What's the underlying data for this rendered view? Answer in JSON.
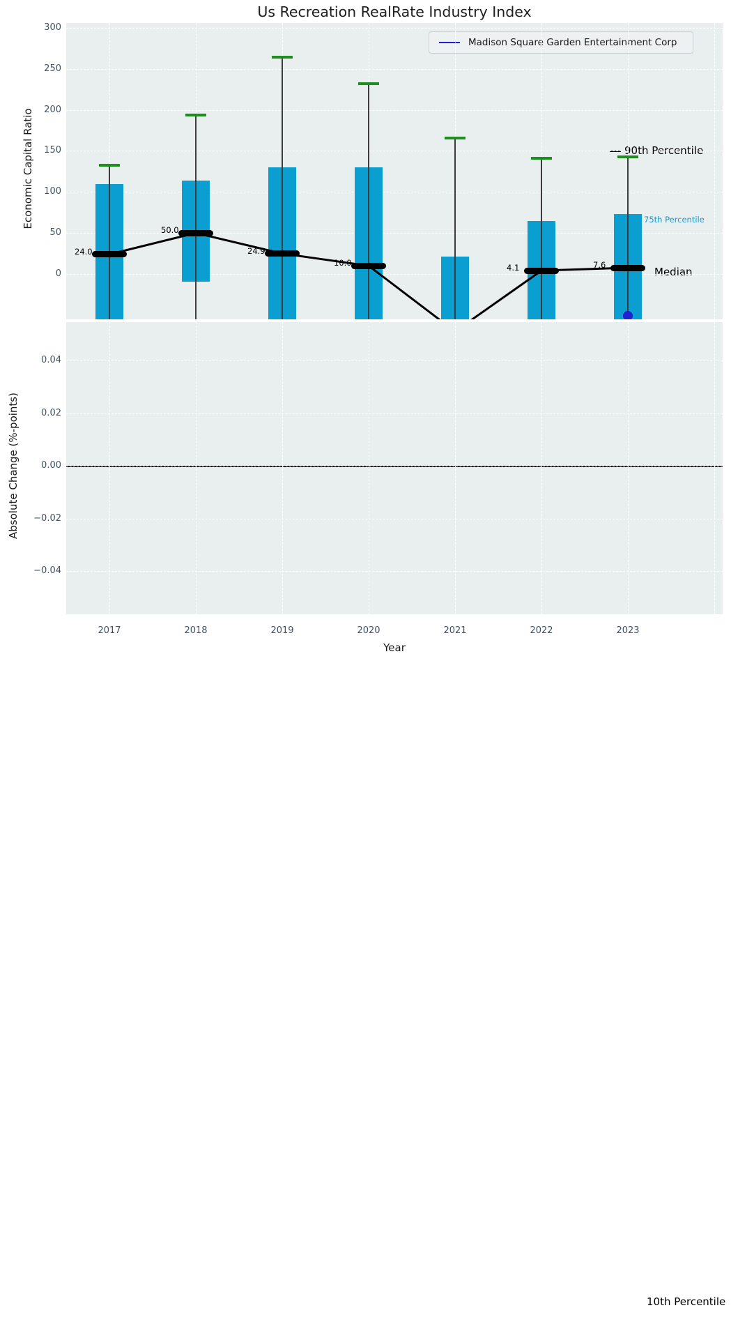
{
  "figure": {
    "title": "Us Recreation RealRate Industry Index"
  },
  "chart_data": {
    "type": "bar",
    "subtype": "percentile-band-timeseries",
    "title": "Us Recreation RealRate Industry Index",
    "xlabel": "Year",
    "categories": [
      "2017",
      "2018",
      "2019",
      "2020",
      "2021",
      "2022",
      "2023"
    ],
    "top_panel": {
      "ylabel": "Economic Capital Ratio",
      "ylim": [
        -55,
        306
      ],
      "yticks": [
        {
          "label": "300",
          "value": 300
        },
        {
          "label": "250",
          "value": 250
        },
        {
          "label": "200",
          "value": 200
        },
        {
          "label": "150",
          "value": 150
        },
        {
          "label": "100",
          "value": 100
        },
        {
          "label": "50",
          "value": 50
        },
        {
          "label": "0",
          "value": 0
        }
      ],
      "series": [
        {
          "name": "90th Percentile",
          "values": [
            133,
            194,
            264,
            232,
            166,
            141,
            143
          ]
        },
        {
          "name": "75th Percentile",
          "values": [
            110,
            114,
            130,
            130,
            21,
            65,
            73
          ]
        },
        {
          "name": "Median",
          "values": [
            24.0,
            50.0,
            24.9,
            10.0,
            null,
            4.1,
            7.6
          ]
        },
        {
          "name": "25th Percentile",
          "values": [
            null,
            -9,
            null,
            null,
            null,
            null,
            null
          ]
        }
      ],
      "median_labels": [
        "24.0",
        "50.0",
        "24.9",
        "10.0",
        null,
        "4.1",
        "7.6"
      ],
      "company_point": {
        "name": "Madison Square Garden Entertainment Corp",
        "category": "2023",
        "value": -51
      }
    },
    "bottom_panel": {
      "ylabel": "Absolute Change (%-points)",
      "ylim": [
        -0.056,
        0.055
      ],
      "yticks": [
        {
          "label": "0.04",
          "value": 0.04
        },
        {
          "label": "0.02",
          "value": 0.02
        },
        {
          "label": "0.00",
          "value": 0.0
        },
        {
          "label": "−0.02",
          "value": -0.02
        },
        {
          "label": "−0.04",
          "value": -0.04
        }
      ],
      "zero_line": 0.0
    },
    "legend": {
      "position": "upper right",
      "entries": [
        {
          "label": "Madison Square Garden Entertainment Corp",
          "color": "#2121d1"
        }
      ]
    },
    "annotations": {
      "p90": "90th Percentile",
      "p75": "75th Percentile",
      "median": "Median",
      "p10": "10th Percentile"
    },
    "grid": true,
    "colors": {
      "bar": "#0b9fd1",
      "whisker_cap": "#1e8e1e",
      "whisker_line": "#3d3d3d",
      "median": "#000000",
      "company": "#2121d1",
      "plot_bg": "#e9eeef",
      "grid": "#ffffff",
      "tick": "#3f5266"
    }
  }
}
